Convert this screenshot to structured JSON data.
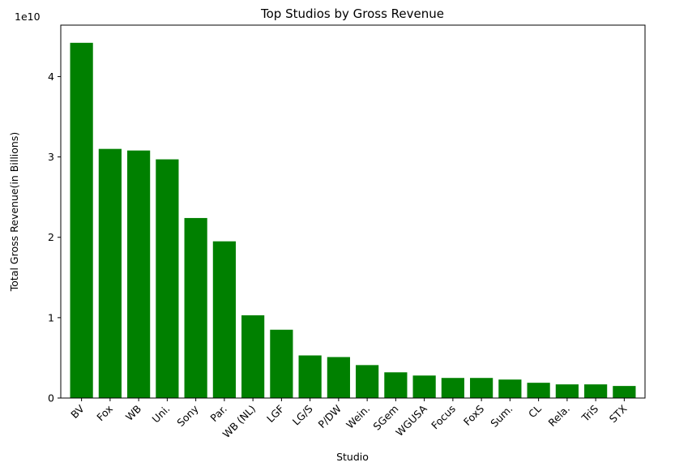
{
  "chart_data": {
    "type": "bar",
    "title": "Top Studios by Gross Revenue",
    "xlabel": "Studio",
    "ylabel": "Total Gross Revenue(in Billions)",
    "y_offset_label": "1e10",
    "ylim": [
      0,
      46400000000.0
    ],
    "yticks": [
      0,
      10000000000.0,
      20000000000.0,
      30000000000.0,
      40000000000.0
    ],
    "ytick_labels": [
      "0",
      "1",
      "2",
      "3",
      "4"
    ],
    "grid": false,
    "bar_color": "#008000",
    "categories": [
      "BV",
      "Fox",
      "WB",
      "Uni.",
      "Sony",
      "Par.",
      "WB (NL)",
      "LGF",
      "LG/S",
      "P/DW",
      "Wein.",
      "SGem",
      "WGUSA",
      "Focus",
      "FoxS",
      "Sum.",
      "CL",
      "Rela.",
      "TriS",
      "STX"
    ],
    "values": [
      44200000000.0,
      31000000000.0,
      30800000000.0,
      29700000000.0,
      22400000000.0,
      19500000000.0,
      10300000000.0,
      8500000000.0,
      5300000000.0,
      5100000000.0,
      4100000000.0,
      3200000000.0,
      2800000000.0,
      2500000000.0,
      2500000000.0,
      2300000000.0,
      1900000000.0,
      1700000000.0,
      1700000000.0,
      1500000000.0
    ]
  }
}
